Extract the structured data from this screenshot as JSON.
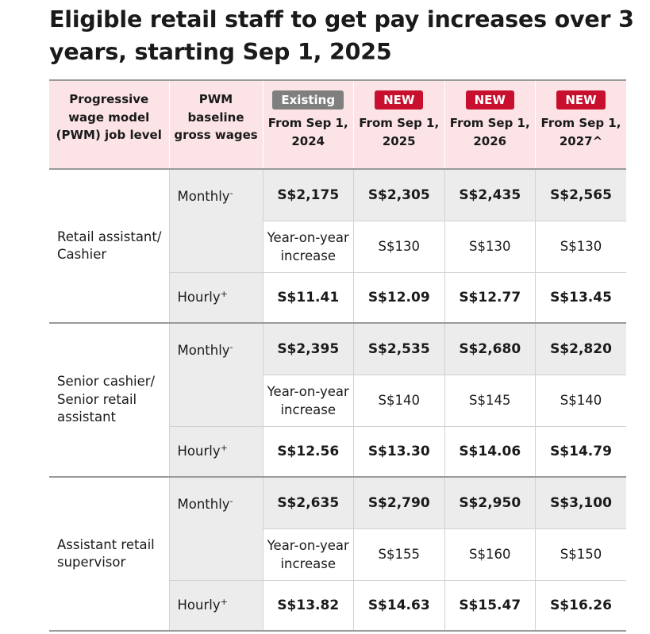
{
  "title": "Eligible retail staff to get pay increases over 3 years, starting Sep 1, 2025",
  "badges": {
    "existing": "Existing",
    "new": "NEW"
  },
  "colors": {
    "header_bg": "#fbe3e6",
    "new_badge": "#c8102e",
    "existing_badge": "#7f7f7f",
    "shaded_row": "#ececec"
  },
  "headers": {
    "level": "Progressive wage model (PWM) job level",
    "pwm": "PWM baseline gross wages",
    "periods": [
      {
        "badge": "Existing",
        "label": "From Sep 1, 2024"
      },
      {
        "badge": "NEW",
        "label": "From Sep 1, 2025"
      },
      {
        "badge": "NEW",
        "label": "From Sep 1, 2026"
      },
      {
        "badge": "NEW",
        "label": "From Sep 1, 2027^"
      }
    ]
  },
  "row_labels": {
    "monthly": "Monthly",
    "monthly_mark": "-",
    "yoy": "Year-on-year increase",
    "hourly": "Hourly",
    "hourly_mark": "+"
  },
  "groups": [
    {
      "level": "Retail assistant/ Cashier",
      "monthly": [
        "S$2,175",
        "S$2,305",
        "S$2,435",
        "S$2,565"
      ],
      "yoy": [
        "S$130",
        "S$130",
        "S$130"
      ],
      "hourly": [
        "S$11.41",
        "S$12.09",
        "S$12.77",
        "S$13.45"
      ]
    },
    {
      "level": "Senior cashier/ Senior retail assistant",
      "monthly": [
        "S$2,395",
        "S$2,535",
        "S$2,680",
        "S$2,820"
      ],
      "yoy": [
        "S$140",
        "S$145",
        "S$140"
      ],
      "hourly": [
        "S$12.56",
        "S$13.30",
        "S$14.06",
        "S$14.79"
      ]
    },
    {
      "level": "Assistant retail supervisor",
      "monthly": [
        "S$2,635",
        "S$2,790",
        "S$2,950",
        "S$3,100"
      ],
      "yoy": [
        "S$155",
        "S$160",
        "S$150"
      ],
      "hourly": [
        "S$13.82",
        "S$14.63",
        "S$15.47",
        "S$16.26"
      ]
    }
  ]
}
